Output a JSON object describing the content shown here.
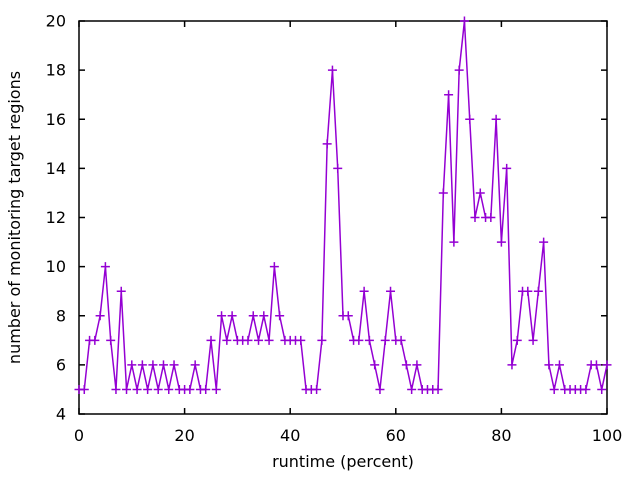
{
  "colors": {
    "background": "#ffffff",
    "axis": "#000000",
    "series_line": "#9400d3"
  },
  "chart_data": {
    "type": "line",
    "title": "",
    "xlabel": "runtime (percent)",
    "ylabel": "number of monitoring target regions",
    "xlim": [
      0,
      100
    ],
    "ylim": [
      4,
      20
    ],
    "xticks": [
      0,
      20,
      40,
      60,
      80,
      100
    ],
    "yticks": [
      4,
      6,
      8,
      10,
      12,
      14,
      16,
      18,
      20
    ],
    "grid": false,
    "legend": "none",
    "marker": "plus",
    "line_color": "#9400d3",
    "series": [
      {
        "x": [
          0,
          1,
          2,
          3,
          4,
          5,
          6,
          7,
          8,
          9,
          10,
          11,
          12,
          13,
          14,
          15,
          16,
          17,
          18,
          19,
          20,
          21,
          22,
          23,
          24,
          25,
          26,
          27,
          28,
          29,
          30,
          31,
          32,
          33,
          34,
          35,
          36,
          37,
          38,
          39,
          40,
          41,
          42,
          43,
          44,
          45,
          46,
          47,
          48,
          49,
          50,
          51,
          52,
          53,
          54,
          55,
          56,
          57,
          58,
          59,
          60,
          61,
          62,
          63,
          64,
          65,
          66,
          67,
          68,
          69,
          70,
          71,
          72,
          73,
          74,
          75,
          76,
          77,
          78,
          79,
          80,
          81,
          82,
          83,
          84,
          85,
          86,
          87,
          88,
          89,
          90,
          91,
          92,
          93,
          94,
          95,
          96,
          97,
          98,
          99,
          100
        ],
        "y": [
          5,
          5,
          7,
          7,
          8,
          10,
          7,
          5,
          9,
          5,
          6,
          5,
          6,
          5,
          6,
          5,
          6,
          5,
          6,
          5,
          5,
          5,
          6,
          5,
          5,
          7,
          5,
          8,
          7,
          8,
          7,
          7,
          7,
          8,
          7,
          8,
          7,
          10,
          8,
          7,
          7,
          7,
          7,
          5,
          5,
          5,
          7,
          15,
          18,
          14,
          8,
          8,
          7,
          7,
          9,
          7,
          6,
          5,
          7,
          9,
          7,
          7,
          6,
          5,
          6,
          5,
          5,
          5,
          5,
          13,
          17,
          11,
          18,
          20,
          16,
          12,
          13,
          12,
          12,
          16,
          11,
          14,
          6,
          7,
          9,
          9,
          7,
          9,
          11,
          6,
          5,
          6,
          5,
          5,
          5,
          5,
          5,
          6,
          6,
          5,
          6
        ]
      }
    ]
  }
}
